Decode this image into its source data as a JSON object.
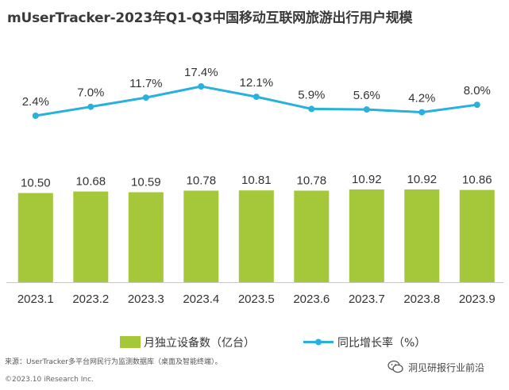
{
  "chart_data": {
    "type": "bar+line",
    "title": "mUserTracker-2023年Q1-Q3中国移动互联网旅游出行用户规模",
    "categories": [
      "2023.1",
      "2023.2",
      "2023.3",
      "2023.4",
      "2023.5",
      "2023.6",
      "2023.7",
      "2023.8",
      "2023.9"
    ],
    "series": [
      {
        "name": "月独立设备数（亿台）",
        "kind": "bar",
        "color": "#a4c83a",
        "values": [
          10.5,
          10.68,
          10.59,
          10.78,
          10.81,
          10.78,
          10.92,
          10.92,
          10.86
        ],
        "labels": [
          "10.50",
          "10.68",
          "10.59",
          "10.78",
          "10.81",
          "10.78",
          "10.92",
          "10.92",
          "10.86"
        ]
      },
      {
        "name": "同比增长率（%）",
        "kind": "line",
        "color": "#27b1dc",
        "values": [
          2.4,
          7.0,
          11.7,
          17.4,
          12.1,
          5.9,
          5.6,
          4.2,
          8.0
        ],
        "labels": [
          "2.4%",
          "7.0%",
          "11.7%",
          "17.4%",
          "12.1%",
          "5.9%",
          "5.6%",
          "4.2%",
          "8.0%"
        ]
      }
    ],
    "legend_position": "bottom"
  },
  "footer": {
    "source": "来源：UserTracker多平台网民行为监测数据库（桌面及智能终端）。",
    "copyright": "©2023.10 iResearch Inc.",
    "watermark": "洞见研报行业前沿"
  },
  "colors": {
    "title": "#3a3a3a",
    "axis": "#c8c8c8",
    "text": "#333333"
  }
}
